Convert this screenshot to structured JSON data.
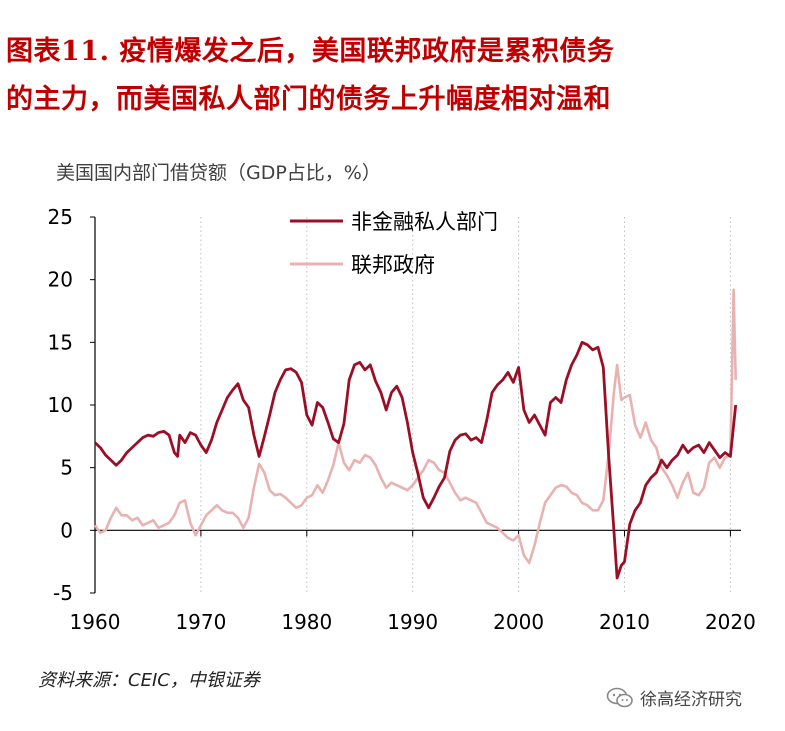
{
  "title_line1": "图表11. 疫情爆发之后，美国联邦政府是累积债务",
  "title_line2": "的主力，而美国私人部门的债务上升幅度相对温和",
  "source": "资料来源：CEIC，中银证券",
  "brand": "徐高经济研究",
  "brand_icon": "wechat-icon",
  "colors": {
    "title": "#c00000",
    "private": "#9b0f26",
    "federal": "#e8b2b0"
  },
  "chart_data": {
    "type": "line",
    "ylabel": "美国国内部门借贷额（GDP占比，%）",
    "ylim": [
      -5,
      25
    ],
    "xlim": [
      1960,
      2021
    ],
    "yticks": [
      -5,
      0,
      5,
      10,
      15,
      20,
      25
    ],
    "xticks": [
      1960,
      1970,
      1980,
      1990,
      2000,
      2010,
      2020
    ],
    "grid": "vertical dotted",
    "legend_position": "top-center",
    "series": [
      {
        "name": "非金融私人部门",
        "points": [
          [
            1960,
            7.0
          ],
          [
            1960.5,
            6.6
          ],
          [
            1961,
            6.0
          ],
          [
            1961.5,
            5.6
          ],
          [
            1962,
            5.2
          ],
          [
            1962.5,
            5.6
          ],
          [
            1963,
            6.2
          ],
          [
            1963.5,
            6.6
          ],
          [
            1964,
            7.0
          ],
          [
            1964.5,
            7.4
          ],
          [
            1965,
            7.6
          ],
          [
            1965.5,
            7.5
          ],
          [
            1966,
            7.8
          ],
          [
            1966.5,
            7.9
          ],
          [
            1967,
            7.6
          ],
          [
            1967.5,
            6.2
          ],
          [
            1967.8,
            5.9
          ],
          [
            1968,
            7.6
          ],
          [
            1968.5,
            7.0
          ],
          [
            1969,
            7.8
          ],
          [
            1969.5,
            7.6
          ],
          [
            1970,
            6.8
          ],
          [
            1970.5,
            6.2
          ],
          [
            1971,
            7.2
          ],
          [
            1971.5,
            8.6
          ],
          [
            1972,
            9.6
          ],
          [
            1972.5,
            10.6
          ],
          [
            1973,
            11.2
          ],
          [
            1973.5,
            11.7
          ],
          [
            1974,
            10.4
          ],
          [
            1974.5,
            9.8
          ],
          [
            1975,
            7.6
          ],
          [
            1975.5,
            5.9
          ],
          [
            1976,
            7.5
          ],
          [
            1976.5,
            9.2
          ],
          [
            1977,
            11.0
          ],
          [
            1977.5,
            12.0
          ],
          [
            1978,
            12.8
          ],
          [
            1978.5,
            12.9
          ],
          [
            1979,
            12.6
          ],
          [
            1979.5,
            11.8
          ],
          [
            1980,
            9.2
          ],
          [
            1980.5,
            8.4
          ],
          [
            1981,
            10.2
          ],
          [
            1981.5,
            9.8
          ],
          [
            1982,
            8.6
          ],
          [
            1982.5,
            7.3
          ],
          [
            1983,
            7.0
          ],
          [
            1983.5,
            8.5
          ],
          [
            1984,
            12.0
          ],
          [
            1984.5,
            13.2
          ],
          [
            1985,
            13.4
          ],
          [
            1985.5,
            12.8
          ],
          [
            1986,
            13.2
          ],
          [
            1986.5,
            11.9
          ],
          [
            1987,
            11.0
          ],
          [
            1987.5,
            9.6
          ],
          [
            1988,
            11.0
          ],
          [
            1988.5,
            11.5
          ],
          [
            1989,
            10.6
          ],
          [
            1989.5,
            8.6
          ],
          [
            1990,
            6.2
          ],
          [
            1990.5,
            4.5
          ],
          [
            1991,
            2.6
          ],
          [
            1991.5,
            1.8
          ],
          [
            1992,
            2.6
          ],
          [
            1992.5,
            3.5
          ],
          [
            1993,
            4.2
          ],
          [
            1993.5,
            6.3
          ],
          [
            1994,
            7.2
          ],
          [
            1994.5,
            7.6
          ],
          [
            1995,
            7.7
          ],
          [
            1995.5,
            7.2
          ],
          [
            1996,
            7.4
          ],
          [
            1996.5,
            7.0
          ],
          [
            1997,
            8.8
          ],
          [
            1997.5,
            11.0
          ],
          [
            1998,
            11.6
          ],
          [
            1998.5,
            12.0
          ],
          [
            1999,
            12.6
          ],
          [
            1999.5,
            11.8
          ],
          [
            2000,
            13.0
          ],
          [
            2000.5,
            9.6
          ],
          [
            2001,
            8.6
          ],
          [
            2001.5,
            9.2
          ],
          [
            2002,
            8.4
          ],
          [
            2002.5,
            7.6
          ],
          [
            2003,
            10.2
          ],
          [
            2003.5,
            10.6
          ],
          [
            2004,
            10.2
          ],
          [
            2004.5,
            12.0
          ],
          [
            2005,
            13.2
          ],
          [
            2005.5,
            14.0
          ],
          [
            2006,
            15.0
          ],
          [
            2006.5,
            14.8
          ],
          [
            2007,
            14.4
          ],
          [
            2007.5,
            14.6
          ],
          [
            2008,
            13.0
          ],
          [
            2008.5,
            6.0
          ],
          [
            2009,
            0.0
          ],
          [
            2009.3,
            -3.8
          ],
          [
            2009.7,
            -2.8
          ],
          [
            2010,
            -2.5
          ],
          [
            2010.5,
            0.5
          ],
          [
            2011,
            1.6
          ],
          [
            2011.5,
            2.2
          ],
          [
            2012,
            3.6
          ],
          [
            2012.5,
            4.2
          ],
          [
            2013,
            4.6
          ],
          [
            2013.5,
            5.6
          ],
          [
            2014,
            5.0
          ],
          [
            2014.5,
            5.6
          ],
          [
            2015,
            6.0
          ],
          [
            2015.5,
            6.8
          ],
          [
            2016,
            6.2
          ],
          [
            2016.5,
            6.6
          ],
          [
            2017,
            6.8
          ],
          [
            2017.5,
            6.2
          ],
          [
            2018,
            7.0
          ],
          [
            2018.5,
            6.4
          ],
          [
            2019,
            5.8
          ],
          [
            2019.5,
            6.2
          ],
          [
            2020,
            5.9
          ],
          [
            2020.5,
            10.0
          ]
        ]
      },
      {
        "name": "联邦政府",
        "points": [
          [
            1960,
            0.4
          ],
          [
            1960.5,
            -0.2
          ],
          [
            1961,
            0.0
          ],
          [
            1961.5,
            1.0
          ],
          [
            1962,
            1.8
          ],
          [
            1962.5,
            1.2
          ],
          [
            1963,
            1.2
          ],
          [
            1963.5,
            0.8
          ],
          [
            1964,
            1.0
          ],
          [
            1964.5,
            0.4
          ],
          [
            1965,
            0.6
          ],
          [
            1965.5,
            0.8
          ],
          [
            1966,
            0.2
          ],
          [
            1966.5,
            0.4
          ],
          [
            1967,
            0.6
          ],
          [
            1967.5,
            1.2
          ],
          [
            1968,
            2.2
          ],
          [
            1968.5,
            2.4
          ],
          [
            1969,
            0.6
          ],
          [
            1969.5,
            -0.4
          ],
          [
            1970,
            0.4
          ],
          [
            1970.5,
            1.2
          ],
          [
            1971,
            1.6
          ],
          [
            1971.5,
            2.0
          ],
          [
            1972,
            1.6
          ],
          [
            1972.5,
            1.4
          ],
          [
            1973,
            1.4
          ],
          [
            1973.5,
            1.0
          ],
          [
            1974,
            0.2
          ],
          [
            1974.5,
            1.0
          ],
          [
            1975,
            3.4
          ],
          [
            1975.5,
            5.3
          ],
          [
            1976,
            4.6
          ],
          [
            1976.5,
            3.2
          ],
          [
            1977,
            2.8
          ],
          [
            1977.5,
            2.9
          ],
          [
            1978,
            2.6
          ],
          [
            1978.5,
            2.2
          ],
          [
            1979,
            1.8
          ],
          [
            1979.5,
            2.0
          ],
          [
            1980,
            2.6
          ],
          [
            1980.5,
            2.8
          ],
          [
            1981,
            3.6
          ],
          [
            1981.5,
            3.0
          ],
          [
            1982,
            4.0
          ],
          [
            1982.5,
            5.2
          ],
          [
            1983,
            7.0
          ],
          [
            1983.5,
            5.4
          ],
          [
            1984,
            4.8
          ],
          [
            1984.5,
            5.6
          ],
          [
            1985,
            5.4
          ],
          [
            1985.5,
            6.0
          ],
          [
            1986,
            5.8
          ],
          [
            1986.5,
            5.2
          ],
          [
            1987,
            4.2
          ],
          [
            1987.5,
            3.4
          ],
          [
            1988,
            3.8
          ],
          [
            1988.5,
            3.6
          ],
          [
            1989,
            3.4
          ],
          [
            1989.5,
            3.2
          ],
          [
            1990,
            3.6
          ],
          [
            1990.5,
            4.2
          ],
          [
            1991,
            4.8
          ],
          [
            1991.5,
            5.6
          ],
          [
            1992,
            5.4
          ],
          [
            1992.5,
            4.8
          ],
          [
            1993,
            4.6
          ],
          [
            1993.5,
            3.8
          ],
          [
            1994,
            3.0
          ],
          [
            1994.5,
            2.4
          ],
          [
            1995,
            2.6
          ],
          [
            1995.5,
            2.4
          ],
          [
            1996,
            2.2
          ],
          [
            1996.5,
            1.4
          ],
          [
            1997,
            0.6
          ],
          [
            1997.5,
            0.4
          ],
          [
            1998,
            0.2
          ],
          [
            1998.5,
            -0.2
          ],
          [
            1999,
            -0.6
          ],
          [
            1999.5,
            -0.8
          ],
          [
            2000,
            -0.4
          ],
          [
            2000.5,
            -2.0
          ],
          [
            2001,
            -2.6
          ],
          [
            2001.5,
            -1.2
          ],
          [
            2002,
            0.6
          ],
          [
            2002.5,
            2.2
          ],
          [
            2003,
            2.8
          ],
          [
            2003.5,
            3.4
          ],
          [
            2004,
            3.6
          ],
          [
            2004.5,
            3.5
          ],
          [
            2005,
            3.0
          ],
          [
            2005.5,
            2.8
          ],
          [
            2006,
            2.2
          ],
          [
            2006.5,
            2.0
          ],
          [
            2007,
            1.6
          ],
          [
            2007.5,
            1.6
          ],
          [
            2008,
            2.4
          ],
          [
            2008.5,
            6.0
          ],
          [
            2009,
            11.0
          ],
          [
            2009.3,
            13.2
          ],
          [
            2009.7,
            10.4
          ],
          [
            2010,
            10.6
          ],
          [
            2010.5,
            10.8
          ],
          [
            2011,
            8.4
          ],
          [
            2011.5,
            7.4
          ],
          [
            2012,
            8.6
          ],
          [
            2012.5,
            7.2
          ],
          [
            2013,
            6.6
          ],
          [
            2013.5,
            5.0
          ],
          [
            2014,
            4.4
          ],
          [
            2014.5,
            3.6
          ],
          [
            2015,
            2.6
          ],
          [
            2015.5,
            3.8
          ],
          [
            2016,
            4.6
          ],
          [
            2016.5,
            3.0
          ],
          [
            2017,
            2.8
          ],
          [
            2017.5,
            3.4
          ],
          [
            2018,
            5.4
          ],
          [
            2018.5,
            5.8
          ],
          [
            2019,
            5.0
          ],
          [
            2019.5,
            5.8
          ],
          [
            2020,
            6.0
          ],
          [
            2020.3,
            19.2
          ],
          [
            2020.5,
            12.0
          ]
        ]
      }
    ]
  }
}
